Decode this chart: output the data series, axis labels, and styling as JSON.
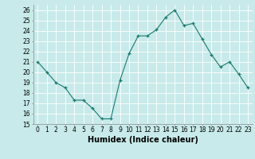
{
  "x": [
    0,
    1,
    2,
    3,
    4,
    5,
    6,
    7,
    8,
    9,
    10,
    11,
    12,
    13,
    14,
    15,
    16,
    17,
    18,
    19,
    20,
    21,
    22,
    23
  ],
  "y": [
    21,
    20,
    19,
    18.5,
    17.3,
    17.3,
    16.5,
    15.5,
    15.5,
    19.2,
    21.8,
    23.5,
    23.5,
    24.1,
    25.3,
    26.0,
    24.5,
    24.7,
    23.2,
    21.7,
    20.5,
    21.0,
    19.8,
    18.5
  ],
  "line_color": "#1a7a6e",
  "marker": "+",
  "bg_color": "#c8eaea",
  "grid_color": "#ffffff",
  "xlabel": "Humidex (Indice chaleur)",
  "xlim": [
    -0.5,
    23.5
  ],
  "ylim": [
    15,
    26.5
  ],
  "yticks": [
    15,
    16,
    17,
    18,
    19,
    20,
    21,
    22,
    23,
    24,
    25,
    26
  ],
  "xticks": [
    0,
    1,
    2,
    3,
    4,
    5,
    6,
    7,
    8,
    9,
    10,
    11,
    12,
    13,
    14,
    15,
    16,
    17,
    18,
    19,
    20,
    21,
    22,
    23
  ],
  "tick_fontsize": 5.5,
  "label_fontsize": 7
}
